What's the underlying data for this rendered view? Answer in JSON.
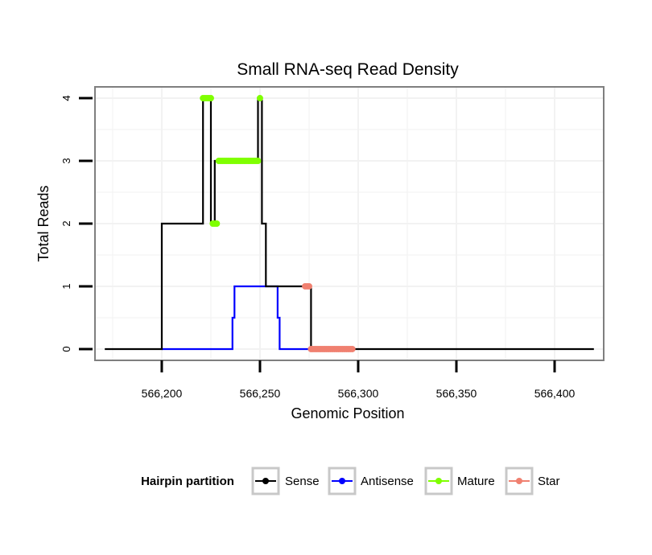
{
  "chart_data": {
    "type": "line",
    "title": "Small RNA-seq Read Density",
    "xlabel": "Genomic Position",
    "ylabel": "Total Reads",
    "xlim": [
      566166,
      566425
    ],
    "ylim": [
      -0.18,
      4.18
    ],
    "xticks": [
      566200,
      566250,
      566300,
      566350,
      566400
    ],
    "xtick_labels": [
      "566,200",
      "566,250",
      "566,300",
      "566,350",
      "566,400"
    ],
    "yticks": [
      0,
      1,
      2,
      3,
      4
    ],
    "ytick_labels": [
      "0",
      "1",
      "2",
      "3",
      "4"
    ],
    "grid": true,
    "legend": {
      "title": "Hairpin partition",
      "position": "bottom",
      "entries": [
        "Sense",
        "Antisense",
        "Mature",
        "Star"
      ]
    },
    "series": [
      {
        "name": "Sense",
        "kind": "step",
        "color": "#000000",
        "x": [
          566171,
          566200,
          566200,
          566221,
          566221,
          566225,
          566225,
          566227,
          566227,
          566229,
          566229,
          566249,
          566249,
          566251,
          566251,
          566253,
          566253,
          566274,
          566274,
          566276,
          566276,
          566420
        ],
        "y": [
          0,
          0,
          2,
          2,
          4,
          4,
          2,
          2,
          3,
          3,
          3,
          3,
          4,
          4,
          2,
          2,
          1,
          1,
          1,
          1,
          0,
          0
        ]
      },
      {
        "name": "Antisense",
        "kind": "step",
        "color": "#0000ff",
        "x": [
          566200,
          566236,
          566236,
          566237,
          566237,
          566259,
          566259,
          566260,
          566260,
          566276
        ],
        "y": [
          0,
          0,
          0.5,
          0.5,
          1,
          1,
          0.5,
          0.5,
          0,
          0
        ]
      },
      {
        "name": "Mature",
        "kind": "points",
        "color": "#7fff00",
        "x": [
          566221,
          566222,
          566223,
          566224,
          566225,
          566226,
          566227,
          566228,
          566229,
          566230,
          566231,
          566232,
          566233,
          566234,
          566235,
          566236,
          566237,
          566238,
          566239,
          566240,
          566241,
          566242,
          566243,
          566244,
          566245,
          566246,
          566247,
          566248,
          566249,
          566250
        ],
        "y": [
          4,
          4,
          4,
          4,
          4,
          2,
          2,
          2,
          3,
          3,
          3,
          3,
          3,
          3,
          3,
          3,
          3,
          3,
          3,
          3,
          3,
          3,
          3,
          3,
          3,
          3,
          3,
          3,
          3,
          4
        ]
      },
      {
        "name": "Star",
        "kind": "points",
        "color": "#f08070",
        "x": [
          566273,
          566274,
          566275,
          566276,
          566277,
          566278,
          566279,
          566280,
          566281,
          566282,
          566283,
          566284,
          566285,
          566286,
          566287,
          566288,
          566289,
          566290,
          566291,
          566292,
          566293,
          566294,
          566295,
          566296,
          566297
        ],
        "y": [
          1,
          1,
          1,
          0,
          0,
          0,
          0,
          0,
          0,
          0,
          0,
          0,
          0,
          0,
          0,
          0,
          0,
          0,
          0,
          0,
          0,
          0,
          0,
          0,
          0
        ]
      }
    ]
  }
}
